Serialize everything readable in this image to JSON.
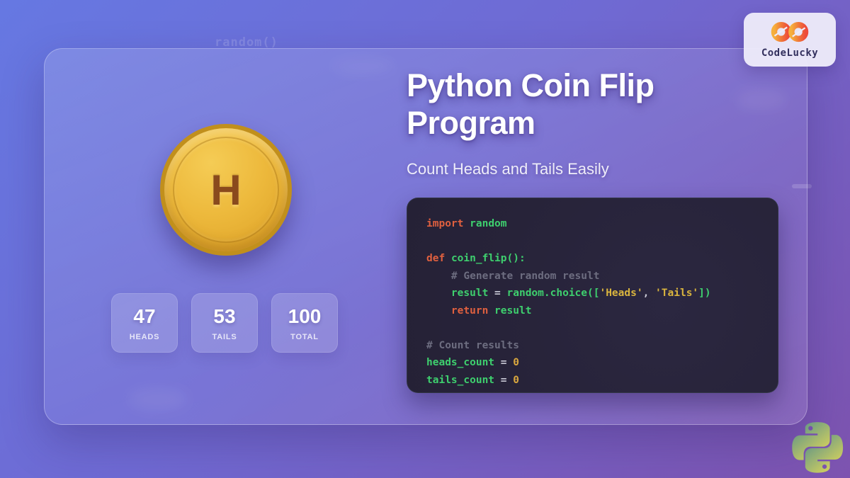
{
  "page": {
    "background_top_color": "#6678e2",
    "background_bottom_color": "#7d53af"
  },
  "watermark": {
    "text": "random()"
  },
  "brand": {
    "name": "CodeLucky",
    "logo_color_left": "#f2a73b",
    "logo_color_right": "#ee4b3a",
    "text_color": "#33305e"
  },
  "hero": {
    "title": "Python Coin Flip Program",
    "subtitle": "Count Heads and Tails Easily"
  },
  "coin": {
    "letter": "H",
    "face_color": "#ecb83a",
    "rim_color": "#c18f1c",
    "letter_color": "#8a4a1d"
  },
  "stats": [
    {
      "value": "47",
      "label": "HEADS"
    },
    {
      "value": "53",
      "label": "TAILS"
    },
    {
      "value": "100",
      "label": "TOTAL"
    }
  ],
  "code": {
    "background_color": "#272339",
    "token_colors": {
      "kw": "#e0603f",
      "fn": "#3ecf6e",
      "cm": "#6d6d80",
      "st": "#d9b43e",
      "num": "#d9a73e",
      "pl": "#c9c9d6"
    },
    "lines": [
      [
        [
          "kw",
          "import"
        ],
        [
          "pl",
          " "
        ],
        [
          "fn",
          "random"
        ]
      ],
      [],
      [
        [
          "kw",
          "def"
        ],
        [
          "pl",
          " "
        ],
        [
          "fn",
          "coin_flip():"
        ]
      ],
      [
        [
          "cm",
          "    # Generate random result"
        ]
      ],
      [
        [
          "pl",
          "    "
        ],
        [
          "fn",
          "result"
        ],
        [
          "pl",
          " = "
        ],
        [
          "fn",
          "random.choice(["
        ],
        [
          "st",
          "'Heads'"
        ],
        [
          "pl",
          ", "
        ],
        [
          "st",
          "'Tails'"
        ],
        [
          "fn",
          "])"
        ]
      ],
      [
        [
          "pl",
          "    "
        ],
        [
          "kw",
          "return"
        ],
        [
          "pl",
          " "
        ],
        [
          "fn",
          "result"
        ]
      ],
      [],
      [
        [
          "cm",
          "# Count results"
        ]
      ],
      [
        [
          "fn",
          "heads_count"
        ],
        [
          "pl",
          " = "
        ],
        [
          "num",
          "0"
        ]
      ],
      [
        [
          "fn",
          "tails_count"
        ],
        [
          "pl",
          " = "
        ],
        [
          "num",
          "0"
        ]
      ]
    ]
  },
  "python_logo": {
    "gradient_start": "#4e8f8c",
    "gradient_end": "#e6df55"
  }
}
